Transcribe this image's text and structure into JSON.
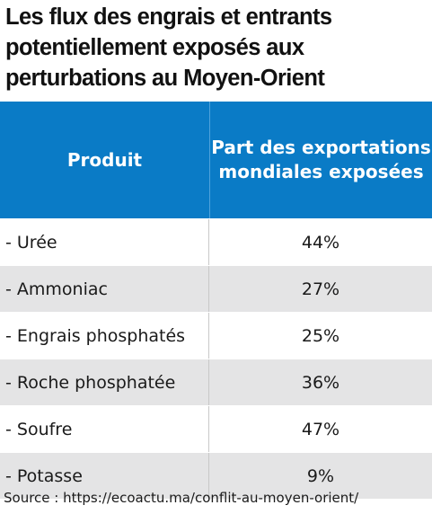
{
  "chart_data": {
    "type": "table",
    "title": "Les flux des engrais et entrants potentiellement exposés aux perturbations au Moyen-Orient",
    "columns": [
      "Produit",
      "Part des exportations mondiales exposées"
    ],
    "rows": [
      {
        "product": "- Urée",
        "share": "44%"
      },
      {
        "product": "- Ammoniac",
        "share": "27%"
      },
      {
        "product": "- Engrais phosphatés",
        "share": "25%"
      },
      {
        "product": "- Roche phosphatée",
        "share": "36%"
      },
      {
        "product": "- Soufre",
        "share": "47%"
      },
      {
        "product": "- Potasse",
        "share": "9%"
      }
    ],
    "values": [
      44,
      27,
      25,
      36,
      47,
      9
    ],
    "unit": "%"
  },
  "source": "Source : https://ecoactu.ma/conflit-au-moyen-orient/",
  "colors": {
    "header_bg": "#0a7bc6",
    "header_text": "#ffffff",
    "alt_row_bg": "#e4e4e5"
  }
}
